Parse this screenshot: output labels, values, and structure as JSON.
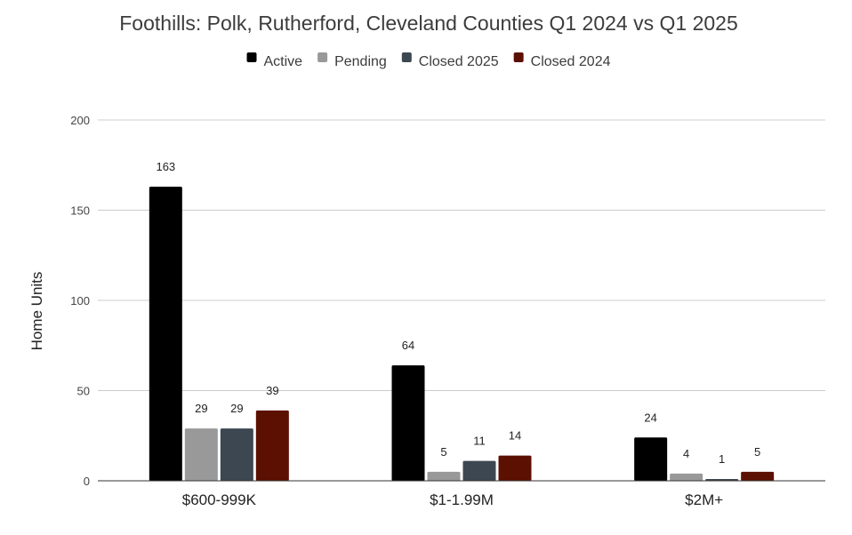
{
  "chart_data": {
    "type": "bar",
    "title": "Foothills: Polk, Rutherford, Cleveland Counties Q1 2024 vs Q1 2025",
    "xlabel": "",
    "ylabel": "Home Units",
    "ylim": [
      0,
      200
    ],
    "yticks": [
      "0",
      "50",
      "100",
      "150",
      "200"
    ],
    "grid": true,
    "legend_position": "top",
    "categories": [
      "$600-999K",
      "$1-1.99M",
      "$2M+"
    ],
    "series": [
      {
        "name": "Active",
        "color": "#000000",
        "values": [
          163,
          64,
          24
        ]
      },
      {
        "name": "Pending",
        "color": "#999999",
        "values": [
          29,
          5,
          4
        ]
      },
      {
        "name": "Closed 2025",
        "color": "#3d4751",
        "values": [
          29,
          11,
          1
        ]
      },
      {
        "name": "Closed 2024",
        "color": "#5c1001",
        "values": [
          39,
          14,
          5
        ]
      }
    ]
  }
}
